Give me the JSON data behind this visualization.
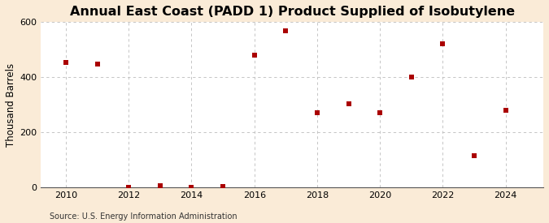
{
  "title": "Annual East Coast (PADD 1) Product Supplied of Isobutylene",
  "ylabel": "Thousand Barrels",
  "source": "Source: U.S. Energy Information Administration",
  "background_color": "#faebd7",
  "plot_background_color": "#ffffff",
  "marker_color": "#aa0000",
  "marker_size": 5,
  "marker_style": "s",
  "years": [
    2010,
    2011,
    2012,
    2013,
    2014,
    2015,
    2016,
    2017,
    2018,
    2019,
    2020,
    2021,
    2022,
    2023,
    2024
  ],
  "values": [
    455,
    448,
    2,
    5,
    2,
    3,
    480,
    567,
    272,
    305,
    270,
    400,
    520,
    115,
    280
  ],
  "ylim": [
    0,
    600
  ],
  "yticks": [
    0,
    200,
    400,
    600
  ],
  "xlim": [
    2009.2,
    2025.2
  ],
  "xticks": [
    2010,
    2012,
    2014,
    2016,
    2018,
    2020,
    2022,
    2024
  ],
  "grid_color": "#bbbbbb",
  "grid_style": "--",
  "title_fontsize": 11.5,
  "label_fontsize": 8.5,
  "tick_fontsize": 8,
  "source_fontsize": 7
}
